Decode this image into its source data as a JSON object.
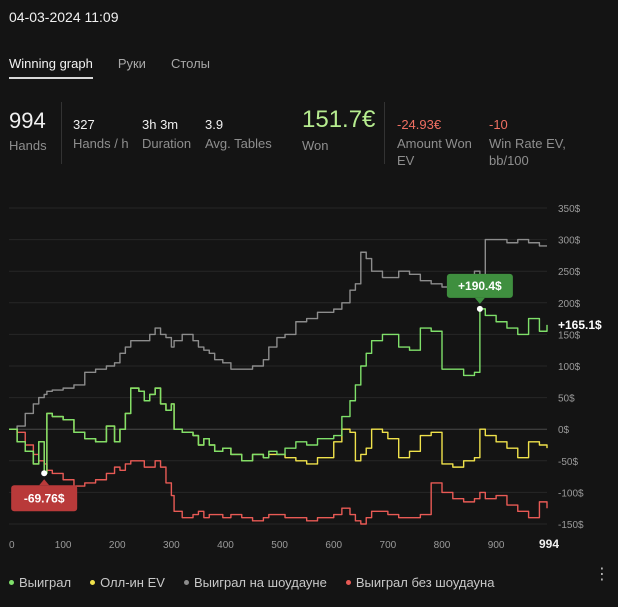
{
  "header": {
    "datetime": "04-03-2024 11:09"
  },
  "tabs": [
    {
      "label": "Winning graph",
      "active": true
    },
    {
      "label": "Руки",
      "active": false
    },
    {
      "label": "Столы",
      "active": false
    }
  ],
  "stats": {
    "hands": {
      "value": "994",
      "label": "Hands"
    },
    "hands_per_hour": {
      "value": "327",
      "label": "Hands / h"
    },
    "duration": {
      "value": "3h 3m",
      "label": "Duration"
    },
    "avg_tables": {
      "value": "3.9",
      "label": "Avg. Tables"
    },
    "won": {
      "value": "151.7€",
      "label": "Won"
    },
    "amount_won_ev": {
      "value": "-24.93€",
      "label": "Amount Won EV"
    },
    "win_rate_ev": {
      "value": "-10",
      "label": "Win Rate EV, bb/100"
    }
  },
  "chart_data": {
    "type": "line",
    "xlim": [
      0,
      994
    ],
    "ylim": [
      -150,
      350
    ],
    "x_ticks": [
      0,
      100,
      200,
      300,
      400,
      500,
      600,
      700,
      800,
      900
    ],
    "x_end_label": "994",
    "y_ticks": [
      "350$",
      "300$",
      "250$",
      "200$",
      "150$",
      "100$",
      "50$",
      "0$",
      "-50$",
      "-100$",
      "-150$"
    ],
    "y_tick_values": [
      350,
      300,
      250,
      200,
      150,
      100,
      50,
      0,
      -50,
      -100,
      -150
    ],
    "grid": true,
    "legend_position": "bottom",
    "annotations": {
      "max": {
        "label": "+190.4$",
        "x": 870,
        "y": 190.4,
        "color": "#3f8f3f"
      },
      "min": {
        "label": "-69.76$",
        "x": 65,
        "y": -69.76,
        "color": "#b93a3a"
      },
      "last": {
        "label": "+165.1$"
      }
    },
    "series": [
      {
        "name": "Выиграл",
        "color": "#7fe06a",
        "x": [
          0,
          15,
          30,
          45,
          55,
          65,
          70,
          80,
          100,
          120,
          140,
          160,
          180,
          195,
          205,
          215,
          225,
          240,
          250,
          260,
          270,
          280,
          290,
          300,
          305,
          320,
          340,
          350,
          360,
          370,
          380,
          395,
          410,
          430,
          450,
          470,
          480,
          495,
          510,
          530,
          550,
          570,
          590,
          600,
          615,
          630,
          640,
          650,
          660,
          670,
          690,
          700,
          720,
          740,
          760,
          780,
          800,
          820,
          840,
          860,
          870,
          880,
          900,
          920,
          940,
          960,
          980,
          994
        ],
        "y": [
          0,
          -20,
          -35,
          -55,
          -20,
          -69.76,
          25,
          20,
          15,
          -5,
          -15,
          -20,
          5,
          -20,
          0,
          25,
          65,
          60,
          45,
          55,
          65,
          40,
          30,
          40,
          0,
          -5,
          -10,
          -25,
          -15,
          -25,
          -35,
          -30,
          -40,
          -50,
          -40,
          -45,
          -35,
          -40,
          -30,
          -20,
          -25,
          -15,
          -15,
          -10,
          20,
          45,
          70,
          100,
          120,
          140,
          150,
          150,
          130,
          125,
          160,
          155,
          95,
          95,
          85,
          90,
          190.4,
          180,
          170,
          160,
          150,
          175,
          155,
          165.1
        ]
      },
      {
        "name": "Олл-ин EV",
        "color": "#f0e24b",
        "x": [
          0,
          15,
          30,
          45,
          55,
          65,
          70,
          80,
          100,
          120,
          140,
          160,
          180,
          195,
          205,
          215,
          225,
          240,
          250,
          260,
          270,
          280,
          290,
          300,
          305,
          320,
          340,
          350,
          360,
          370,
          380,
          395,
          410,
          430,
          450,
          470,
          480,
          495,
          510,
          530,
          550,
          570,
          590,
          600,
          615,
          630,
          640,
          650,
          660,
          670,
          690,
          700,
          720,
          740,
          760,
          780,
          800,
          820,
          840,
          860,
          870,
          880,
          900,
          920,
          940,
          960,
          980,
          994
        ],
        "y": [
          0,
          -20,
          -35,
          -55,
          -20,
          -69.76,
          25,
          20,
          15,
          -5,
          -15,
          -20,
          5,
          -20,
          0,
          25,
          65,
          60,
          45,
          55,
          65,
          40,
          30,
          40,
          0,
          -5,
          -10,
          -25,
          -15,
          -25,
          -35,
          -30,
          -40,
          -50,
          -40,
          -45,
          -40,
          -40,
          -45,
          -50,
          -55,
          -45,
          -45,
          -20,
          0,
          -5,
          -50,
          -40,
          -30,
          0,
          -5,
          -15,
          -45,
          -35,
          -10,
          -5,
          -55,
          -60,
          -50,
          -45,
          0,
          -10,
          -20,
          -30,
          -45,
          -20,
          -25,
          -30
        ]
      },
      {
        "name": "Выиграл на шоудауне",
        "color": "#8c8c8c",
        "x": [
          0,
          15,
          30,
          45,
          55,
          65,
          70,
          80,
          100,
          120,
          140,
          160,
          180,
          195,
          205,
          215,
          225,
          240,
          250,
          260,
          270,
          280,
          290,
          300,
          305,
          320,
          340,
          350,
          360,
          370,
          380,
          395,
          410,
          430,
          450,
          470,
          480,
          495,
          510,
          530,
          550,
          570,
          590,
          600,
          615,
          630,
          640,
          650,
          660,
          670,
          690,
          700,
          720,
          740,
          760,
          780,
          800,
          820,
          840,
          860,
          870,
          880,
          900,
          920,
          940,
          960,
          980,
          994
        ],
        "y": [
          0,
          5,
          25,
          40,
          50,
          55,
          60,
          62,
          65,
          70,
          90,
          95,
          100,
          105,
          120,
          130,
          140,
          140,
          140,
          150,
          160,
          150,
          145,
          130,
          140,
          150,
          140,
          130,
          125,
          120,
          110,
          105,
          95,
          95,
          100,
          110,
          130,
          145,
          150,
          170,
          175,
          185,
          185,
          190,
          200,
          220,
          230,
          280,
          270,
          250,
          240,
          240,
          250,
          245,
          235,
          230,
          225,
          230,
          240,
          250,
          240,
          300,
          300,
          295,
          300,
          295,
          290,
          290
        ]
      },
      {
        "name": "Выиграл без шоудауна",
        "color": "#e85a55",
        "x": [
          0,
          15,
          30,
          45,
          55,
          65,
          70,
          80,
          100,
          120,
          140,
          160,
          180,
          195,
          205,
          215,
          225,
          240,
          250,
          260,
          270,
          280,
          290,
          300,
          305,
          320,
          340,
          350,
          360,
          370,
          380,
          395,
          410,
          430,
          450,
          470,
          480,
          495,
          510,
          530,
          550,
          570,
          590,
          600,
          615,
          630,
          640,
          650,
          660,
          670,
          690,
          700,
          720,
          740,
          760,
          780,
          800,
          820,
          840,
          860,
          870,
          880,
          900,
          920,
          940,
          960,
          980,
          994
        ],
        "y": [
          0,
          -5,
          -25,
          -40,
          -50,
          -55,
          -65,
          -70,
          -80,
          -90,
          -85,
          -80,
          -70,
          -60,
          -65,
          -55,
          -50,
          -50,
          -60,
          -60,
          -50,
          -60,
          -85,
          -105,
          -130,
          -140,
          -135,
          -130,
          -140,
          -135,
          -135,
          -140,
          -135,
          -140,
          -145,
          -140,
          -135,
          -135,
          -140,
          -140,
          -145,
          -140,
          -140,
          -135,
          -125,
          -135,
          -145,
          -150,
          -140,
          -130,
          -130,
          -135,
          -140,
          -140,
          -135,
          -85,
          -100,
          -110,
          -115,
          -110,
          -100,
          -110,
          -105,
          -120,
          -130,
          -140,
          -115,
          -125
        ]
      }
    ]
  },
  "legend": [
    {
      "label": "Выиграл",
      "color": "#7fe06a"
    },
    {
      "label": "Олл-ин EV",
      "color": "#f0e24b"
    },
    {
      "label": "Выиграл на шоудауне",
      "color": "#8c8c8c"
    },
    {
      "label": "Выиграл без шоудауна",
      "color": "#e85a55"
    }
  ]
}
